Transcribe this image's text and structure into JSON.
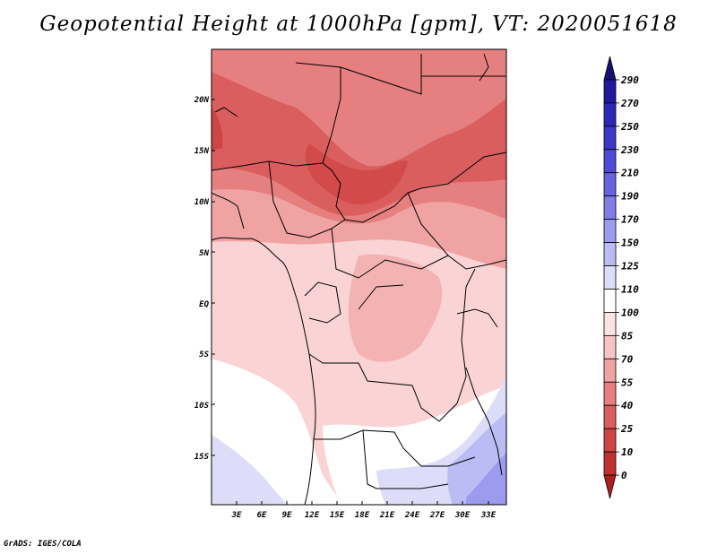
{
  "title": "Geopotential Height at 1000hPa [gpm], VT: 2020051618",
  "footer": "GrADS: IGES/COLA",
  "map": {
    "lat_labels": [
      "20N",
      "15N",
      "10N",
      "5N",
      "EQ",
      "5S",
      "10S",
      "15S"
    ],
    "lon_labels": [
      "3E",
      "6E",
      "9E",
      "12E",
      "15E",
      "18E",
      "21E",
      "24E",
      "27E",
      "30E",
      "33E"
    ]
  },
  "colorbar": {
    "labels": [
      "290",
      "270",
      "250",
      "230",
      "210",
      "190",
      "170",
      "150",
      "125",
      "110",
      "100",
      "85",
      "70",
      "55",
      "40",
      "25",
      "10",
      "0"
    ],
    "colors": [
      "#150f77",
      "#1f1a9e",
      "#2c28b7",
      "#3a37c9",
      "#4c4ad6",
      "#6563e0",
      "#7f7de8",
      "#9c9bee",
      "#bcbcf4",
      "#ddddfa",
      "#ffffff",
      "#fde2e2",
      "#f8c3c3",
      "#f0a3a3",
      "#e68080",
      "#da5e5e",
      "#cf4444",
      "#c22f2f",
      "#b01e1e"
    ]
  }
}
